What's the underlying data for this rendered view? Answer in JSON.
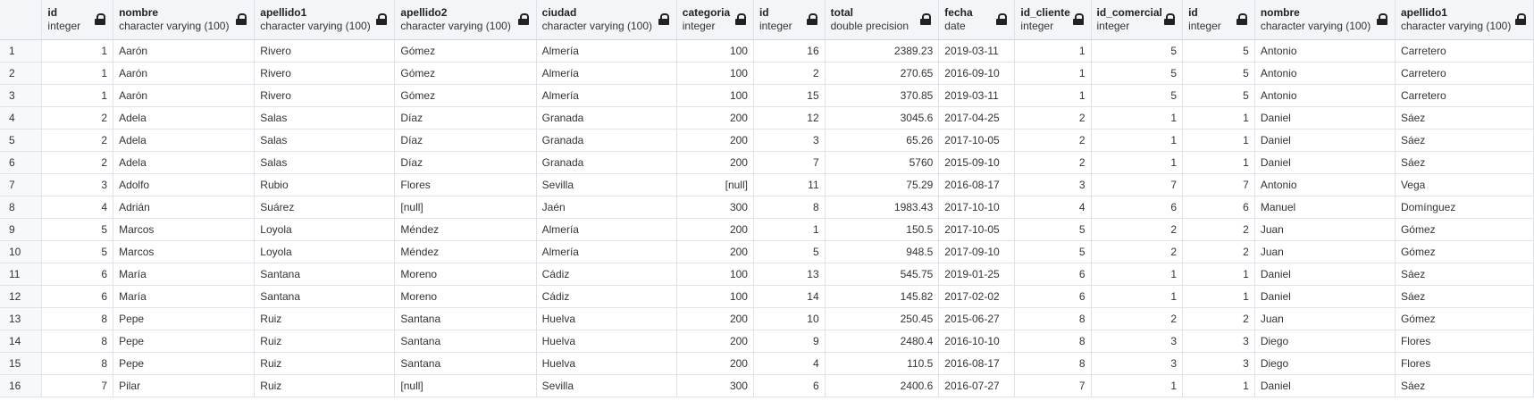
{
  "columns": [
    {
      "key": "id",
      "name": "id",
      "type": "integer",
      "numeric": true
    },
    {
      "key": "nombre",
      "name": "nombre",
      "type": "character varying (100)",
      "numeric": false
    },
    {
      "key": "apellido1",
      "name": "apellido1",
      "type": "character varying (100)",
      "numeric": false
    },
    {
      "key": "apellido2",
      "name": "apellido2",
      "type": "character varying (100)",
      "numeric": false
    },
    {
      "key": "ciudad",
      "name": "ciudad",
      "type": "character varying (100)",
      "numeric": false
    },
    {
      "key": "categoria",
      "name": "categoria",
      "type": "integer",
      "numeric": true
    },
    {
      "key": "id_pedido",
      "name": "id",
      "type": "integer",
      "numeric": true
    },
    {
      "key": "total",
      "name": "total",
      "type": "double precision",
      "numeric": true
    },
    {
      "key": "fecha",
      "name": "fecha",
      "type": "date",
      "numeric": false
    },
    {
      "key": "id_cliente",
      "name": "id_cliente",
      "type": "integer",
      "numeric": true
    },
    {
      "key": "id_comercial",
      "name": "id_comercial",
      "type": "integer",
      "numeric": true
    },
    {
      "key": "id_com",
      "name": "id",
      "type": "integer",
      "numeric": true
    },
    {
      "key": "nombre_com",
      "name": "nombre",
      "type": "character varying (100)",
      "numeric": false
    },
    {
      "key": "apellido1_com",
      "name": "apellido1",
      "type": "character varying (100)",
      "numeric": false
    }
  ],
  "null_label": "[null]",
  "rows": [
    [
      "1",
      "Aarón",
      "Rivero",
      "Gómez",
      "Almería",
      "100",
      "16",
      "2389.23",
      "2019-03-11",
      "1",
      "5",
      "5",
      "Antonio",
      "Carretero"
    ],
    [
      "1",
      "Aarón",
      "Rivero",
      "Gómez",
      "Almería",
      "100",
      "2",
      "270.65",
      "2016-09-10",
      "1",
      "5",
      "5",
      "Antonio",
      "Carretero"
    ],
    [
      "1",
      "Aarón",
      "Rivero",
      "Gómez",
      "Almería",
      "100",
      "15",
      "370.85",
      "2019-03-11",
      "1",
      "5",
      "5",
      "Antonio",
      "Carretero"
    ],
    [
      "2",
      "Adela",
      "Salas",
      "Díaz",
      "Granada",
      "200",
      "12",
      "3045.6",
      "2017-04-25",
      "2",
      "1",
      "1",
      "Daniel",
      "Sáez"
    ],
    [
      "2",
      "Adela",
      "Salas",
      "Díaz",
      "Granada",
      "200",
      "3",
      "65.26",
      "2017-10-05",
      "2",
      "1",
      "1",
      "Daniel",
      "Sáez"
    ],
    [
      "2",
      "Adela",
      "Salas",
      "Díaz",
      "Granada",
      "200",
      "7",
      "5760",
      "2015-09-10",
      "2",
      "1",
      "1",
      "Daniel",
      "Sáez"
    ],
    [
      "3",
      "Adolfo",
      "Rubio",
      "Flores",
      "Sevilla",
      null,
      "11",
      "75.29",
      "2016-08-17",
      "3",
      "7",
      "7",
      "Antonio",
      "Vega"
    ],
    [
      "4",
      "Adrián",
      "Suárez",
      null,
      "Jaén",
      "300",
      "8",
      "1983.43",
      "2017-10-10",
      "4",
      "6",
      "6",
      "Manuel",
      "Domínguez"
    ],
    [
      "5",
      "Marcos",
      "Loyola",
      "Méndez",
      "Almería",
      "200",
      "1",
      "150.5",
      "2017-10-05",
      "5",
      "2",
      "2",
      "Juan",
      "Gómez"
    ],
    [
      "5",
      "Marcos",
      "Loyola",
      "Méndez",
      "Almería",
      "200",
      "5",
      "948.5",
      "2017-09-10",
      "5",
      "2",
      "2",
      "Juan",
      "Gómez"
    ],
    [
      "6",
      "María",
      "Santana",
      "Moreno",
      "Cádiz",
      "100",
      "13",
      "545.75",
      "2019-01-25",
      "6",
      "1",
      "1",
      "Daniel",
      "Sáez"
    ],
    [
      "6",
      "María",
      "Santana",
      "Moreno",
      "Cádiz",
      "100",
      "14",
      "145.82",
      "2017-02-02",
      "6",
      "1",
      "1",
      "Daniel",
      "Sáez"
    ],
    [
      "8",
      "Pepe",
      "Ruiz",
      "Santana",
      "Huelva",
      "200",
      "10",
      "250.45",
      "2015-06-27",
      "8",
      "2",
      "2",
      "Juan",
      "Gómez"
    ],
    [
      "8",
      "Pepe",
      "Ruiz",
      "Santana",
      "Huelva",
      "200",
      "9",
      "2480.4",
      "2016-10-10",
      "8",
      "3",
      "3",
      "Diego",
      "Flores"
    ],
    [
      "8",
      "Pepe",
      "Ruiz",
      "Santana",
      "Huelva",
      "200",
      "4",
      "110.5",
      "2016-08-17",
      "8",
      "3",
      "3",
      "Diego",
      "Flores"
    ],
    [
      "7",
      "Pilar",
      "Ruiz",
      null,
      "Sevilla",
      "300",
      "6",
      "2400.6",
      "2016-07-27",
      "7",
      "1",
      "1",
      "Daniel",
      "Sáez"
    ]
  ]
}
